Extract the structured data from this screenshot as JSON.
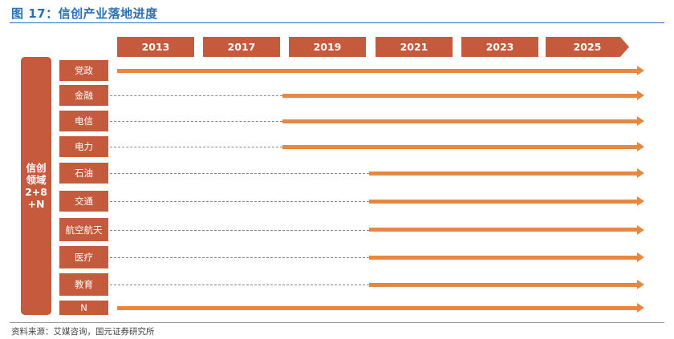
{
  "title": "图 17：信创产业落地进度",
  "source": "资料来源：艾媒咨询，国元证券研究所",
  "domain_label": "信创\n领域\n2+8\n+N",
  "years": [
    "2013",
    "2017",
    "2019",
    "2021",
    "2023",
    "2025"
  ],
  "rows": [
    {
      "label": "党政",
      "start": "2013"
    },
    {
      "label": "金融",
      "start": "2019"
    },
    {
      "label": "电信",
      "start": "2019"
    },
    {
      "label": "电力",
      "start": "2019"
    },
    {
      "label": "石油",
      "start": "2021"
    },
    {
      "label": "交通",
      "start": "2021"
    },
    {
      "label": "航空航天",
      "start": "2021"
    },
    {
      "label": "医疗",
      "start": "2021"
    },
    {
      "label": "教育",
      "start": "2021"
    },
    {
      "label": "N",
      "start": "2013"
    }
  ],
  "colors": {
    "accent": "#c55a3d",
    "arrow": "#e8873d",
    "title": "#2b6fb5"
  }
}
